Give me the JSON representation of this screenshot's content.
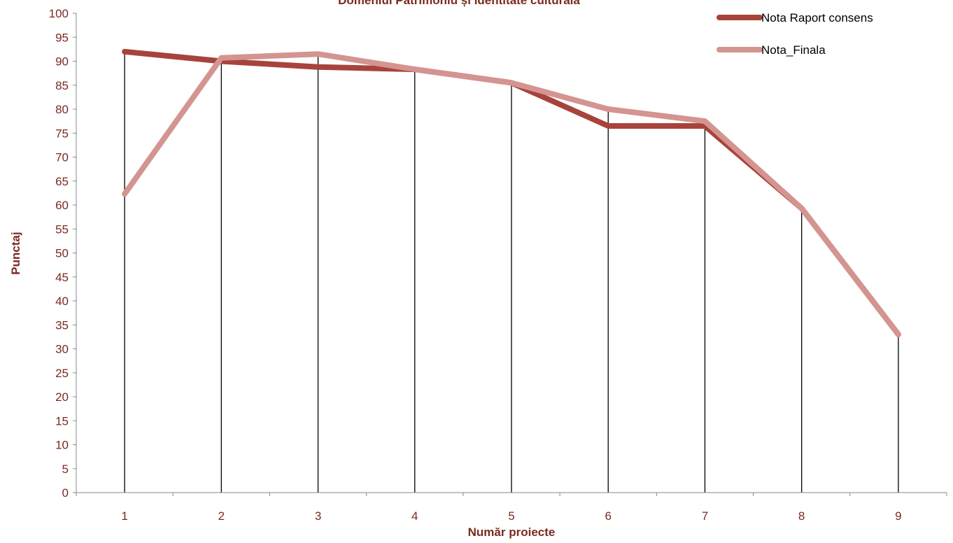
{
  "colors": {
    "axis_text": "#7a2a22",
    "series_1": "#a8433c",
    "series_2": "#d49490",
    "drop_lines": "#000000",
    "axis_line": "#888888"
  },
  "chart_data": {
    "type": "line",
    "title": "Domeniul Patrimoniu și identitate culturală",
    "xlabel": "Număr proiecte",
    "ylabel": "Punctaj",
    "x": [
      1,
      2,
      3,
      4,
      5,
      6,
      7,
      8,
      9
    ],
    "x_tick_labels": [
      "1",
      "2",
      "3",
      "4",
      "5",
      "6",
      "7",
      "8",
      "9"
    ],
    "ylim": [
      0,
      100
    ],
    "y_tick_step": 5,
    "y_tick_labels": [
      "0",
      "5",
      "10",
      "15",
      "20",
      "25",
      "30",
      "35",
      "40",
      "45",
      "50",
      "55",
      "60",
      "65",
      "70",
      "75",
      "80",
      "85",
      "90",
      "95",
      "100"
    ],
    "grid": false,
    "drop_lines": true,
    "legend_position": "top-right",
    "series": [
      {
        "name": "Nota Raport consens",
        "values": [
          92,
          90,
          88.8,
          88.3,
          85.5,
          76.5,
          76.5,
          59.3,
          33
        ]
      },
      {
        "name": "Nota_Finala",
        "values": [
          62.3,
          90.7,
          91.5,
          88.3,
          85.5,
          80,
          77.5,
          59.3,
          33
        ]
      }
    ]
  }
}
